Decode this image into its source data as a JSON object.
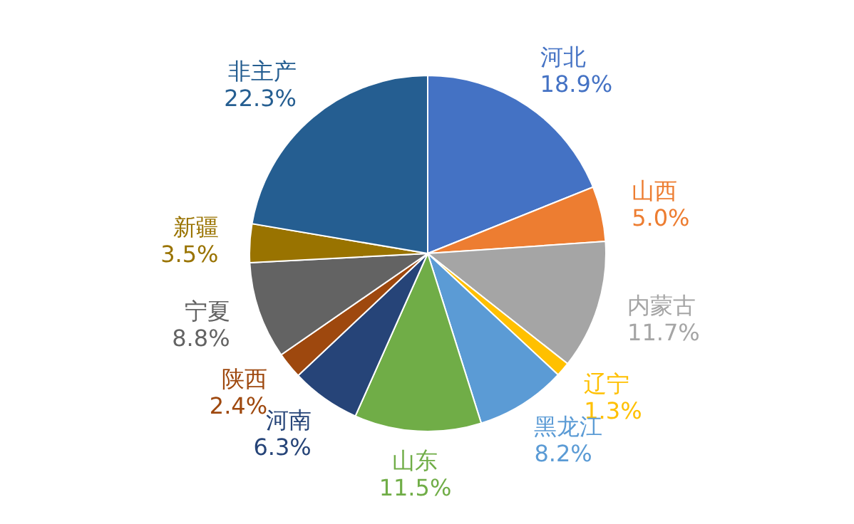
{
  "chart_data": {
    "type": "pie",
    "categories": [
      "河北",
      "山西",
      "内蒙古",
      "辽宁",
      "黑龙江",
      "山东",
      "河南",
      "陕西",
      "宁夏",
      "新疆",
      "非主产"
    ],
    "values": [
      18.9,
      5.0,
      11.7,
      1.3,
      8.2,
      11.5,
      6.3,
      2.4,
      8.8,
      3.5,
      22.3
    ],
    "value_labels": [
      "18.9%",
      "5.0%",
      "11.7%",
      "1.3%",
      "8.2%",
      "11.5%",
      "6.3%",
      "2.4%",
      "8.8%",
      "3.5%",
      "22.3%"
    ],
    "colors": [
      "#4472c4",
      "#ed7d31",
      "#a5a5a5",
      "#ffc000",
      "#5b9bd5",
      "#70ad47",
      "#264478",
      "#9e480e",
      "#636363",
      "#997300",
      "#255e91"
    ]
  }
}
